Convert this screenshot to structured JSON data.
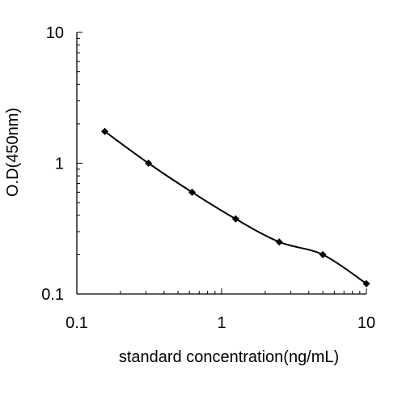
{
  "chart_data": {
    "type": "line",
    "xlabel": "standard concentration(ng/mL)",
    "ylabel": "O.D(450nm)",
    "x_scale": "log",
    "y_scale": "log",
    "xlim": [
      0.1,
      10
    ],
    "ylim": [
      0.1,
      10
    ],
    "x_ticks": [
      "0.1",
      "1",
      "10"
    ],
    "y_ticks": [
      "0.1",
      "1",
      "10"
    ],
    "grid": false,
    "series": [
      {
        "marker": "diamond",
        "color": "#000000",
        "x": [
          0.156,
          0.3125,
          0.625,
          1.25,
          2.5,
          5,
          10
        ],
        "y": [
          1.75,
          1.0,
          0.6,
          0.375,
          0.25,
          0.2,
          0.12
        ]
      }
    ]
  }
}
